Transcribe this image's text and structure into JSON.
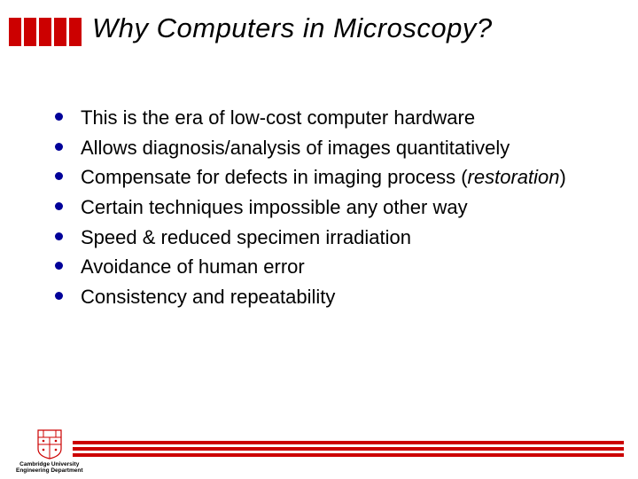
{
  "colors": {
    "accent_red": "#cc0000",
    "bullet_blue": "#000099",
    "text_black": "#000000",
    "background": "#ffffff"
  },
  "header": {
    "title": "Why Computers in Microscopy?",
    "logo_bar_count": 5,
    "logo_bar_color": "#cc0000",
    "title_fontsize": 31,
    "title_style": "italic"
  },
  "bullets": {
    "dot_color": "#000099",
    "text_fontsize": 22,
    "items": [
      {
        "text": "This is the era of low-cost computer hardware"
      },
      {
        "text": "Allows diagnosis/analysis of images quantitatively"
      },
      {
        "html": "Compensate for defects in imaging process (<em>restoration</em>)"
      },
      {
        "text": "Certain techniques impossible any other way"
      },
      {
        "text": "Speed & reduced specimen irradiation"
      },
      {
        "text": "Avoidance of human error"
      },
      {
        "text": "Consistency and repeatability"
      }
    ]
  },
  "footer": {
    "line_color": "#cc0000",
    "line_count": 3,
    "caption_line1": "Cambridge University",
    "caption_line2": "Engineering Department",
    "shield_color": "#cc0000"
  }
}
